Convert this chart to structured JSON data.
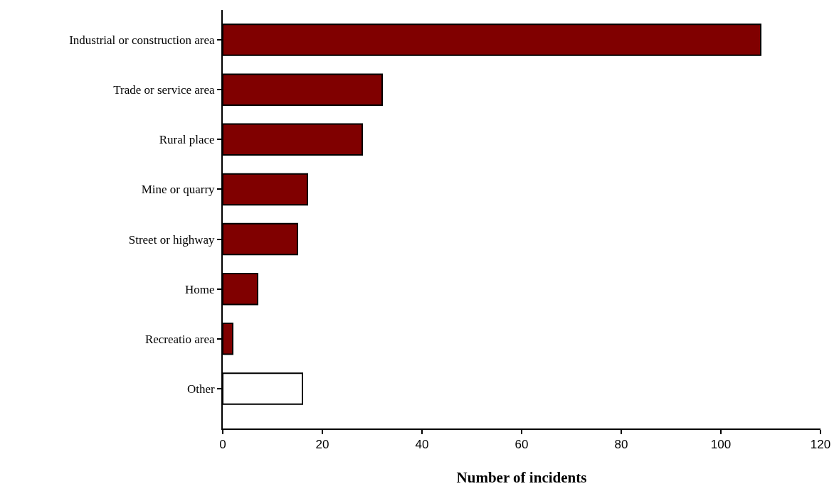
{
  "chart_data": {
    "type": "bar",
    "orientation": "horizontal",
    "xlabel": "Number of incidents",
    "categories": [
      "Industrial or construction area",
      "Trade or service area",
      "Rural place",
      "Mine or quarry",
      "Street or highway",
      "Home",
      "Recreatio area",
      "Other"
    ],
    "values": [
      108,
      32,
      28,
      17,
      15,
      7,
      2,
      16
    ],
    "colors": [
      "#800000",
      "#800000",
      "#800000",
      "#800000",
      "#800000",
      "#800000",
      "#800000",
      "#ffffff"
    ],
    "xlim": [
      0,
      120
    ],
    "xticks": [
      0,
      20,
      40,
      60,
      80,
      100,
      120
    ],
    "grid": false
  }
}
